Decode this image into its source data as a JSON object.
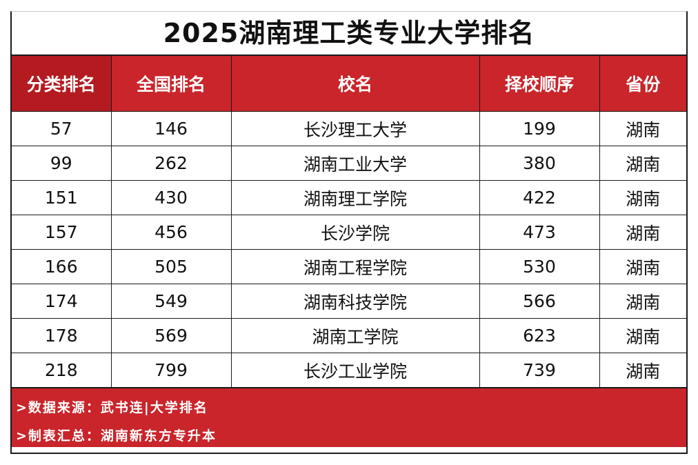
{
  "title": "2025湖南理工类专业大学排名",
  "table": {
    "headers": [
      "分类排名",
      "全国排名",
      "校名",
      "择校顺序",
      "省份"
    ],
    "rows": [
      [
        "57",
        "146",
        "长沙理工大学",
        "199",
        "湖南"
      ],
      [
        "99",
        "262",
        "湖南工业大学",
        "380",
        "湖南"
      ],
      [
        "151",
        "430",
        "湖南理工学院",
        "422",
        "湖南"
      ],
      [
        "157",
        "456",
        "长沙学院",
        "473",
        "湖南"
      ],
      [
        "166",
        "505",
        "湖南工程学院",
        "530",
        "湖南"
      ],
      [
        "174",
        "549",
        "湖南科技学院",
        "566",
        "湖南"
      ],
      [
        "178",
        "569",
        "湖南工学院",
        "623",
        "湖南"
      ],
      [
        "218",
        "799",
        "长沙工业学院",
        "739",
        "湖南"
      ]
    ]
  },
  "footer": {
    "source": ">数据来源：武书连|大学排名",
    "compiler": ">制表汇总：湖南新东方专升本"
  },
  "colors": {
    "header_red": "#c9252b",
    "first_header_red": "#b31b21"
  }
}
